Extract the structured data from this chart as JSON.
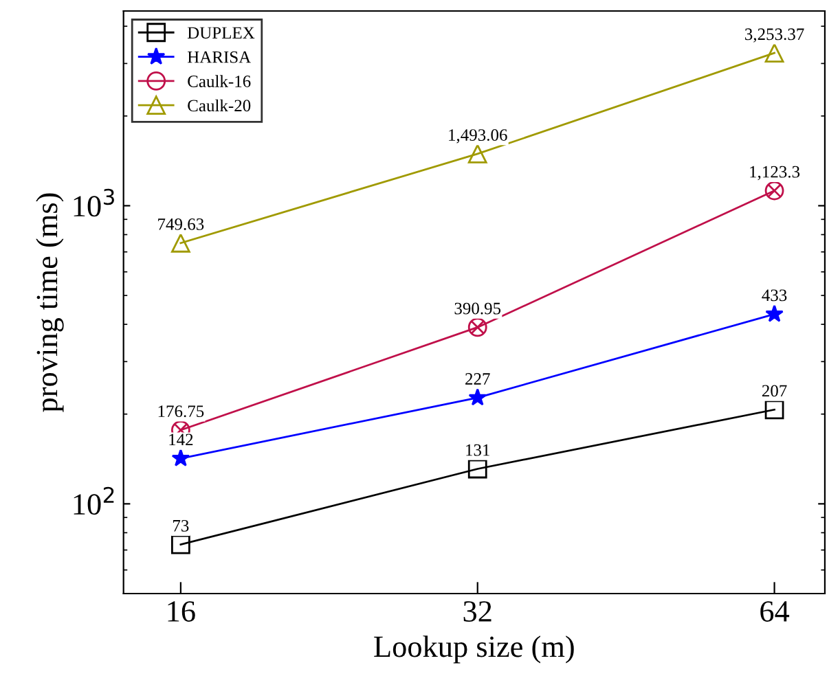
{
  "chart_data": {
    "type": "line",
    "xlabel": "Lookup size (m)",
    "ylabel": "proving time (ms)",
    "log": "xy",
    "x": [
      16,
      32,
      64
    ],
    "xlim": [
      14,
      72
    ],
    "xticks": [
      16,
      32,
      64
    ],
    "ylim": [
      50,
      4500
    ],
    "yticks": [
      {
        "value": 100,
        "label": "10$^{2}$"
      },
      {
        "value": 1000,
        "label": "10$^{3}$"
      }
    ],
    "legend": "top left",
    "grid": false,
    "series": [
      {
        "name": "DUPLEX",
        "color": "#000000",
        "marker": "square",
        "values": [
          73,
          131,
          207
        ],
        "value_labels": [
          "73",
          "131",
          "207"
        ]
      },
      {
        "name": "HARISA",
        "color": "#0000ff",
        "marker": "star",
        "values": [
          142,
          227,
          433
        ],
        "value_labels": [
          "142",
          "227",
          "433"
        ]
      },
      {
        "name": "Caulk-16",
        "color": "#c0104a",
        "marker": "circle",
        "values": [
          176.75,
          390.95,
          1123.3
        ],
        "value_labels": [
          "176.75",
          "390.95",
          "1,123.3"
        ]
      },
      {
        "name": "Caulk-20",
        "color": "#a09a00",
        "marker": "triangle",
        "values": [
          749.63,
          1493.06,
          3253.37
        ],
        "value_labels": [
          "749.63",
          "1,493.06",
          "3,253.37"
        ]
      }
    ]
  }
}
